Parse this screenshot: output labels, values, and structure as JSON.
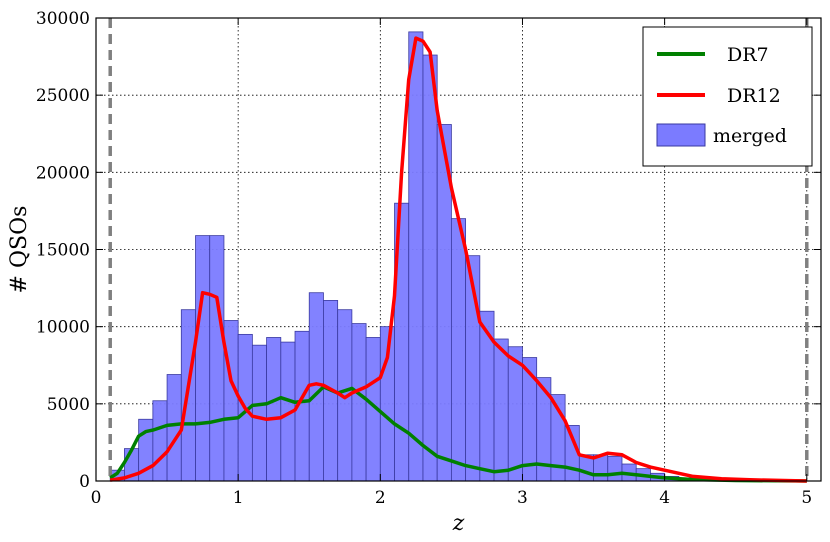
{
  "chart_data": {
    "type": "bar",
    "xlabel": "z",
    "ylabel": "# QSOs",
    "xlim": [
      0,
      5.1
    ],
    "ylim": [
      0,
      30000
    ],
    "xticks": [
      0,
      1,
      2,
      3,
      4,
      5
    ],
    "yticks": [
      0,
      5000,
      10000,
      15000,
      20000,
      25000,
      30000
    ],
    "grid": true,
    "legend_position": "top-right",
    "vertical_lines": [
      0.1,
      5.0
    ],
    "histogram": {
      "name": "merged",
      "color": "#7b7bff",
      "bin_width": 0.1,
      "bin_starts": [
        0.1,
        0.2,
        0.3,
        0.4,
        0.5,
        0.6,
        0.7,
        0.8,
        0.9,
        1.0,
        1.1,
        1.2,
        1.3,
        1.4,
        1.5,
        1.6,
        1.7,
        1.8,
        1.9,
        2.0,
        2.1,
        2.2,
        2.3,
        2.4,
        2.5,
        2.6,
        2.7,
        2.8,
        2.9,
        3.0,
        3.1,
        3.2,
        3.3,
        3.4,
        3.5,
        3.6,
        3.7,
        3.8,
        3.9,
        4.0,
        4.1,
        4.2,
        4.3,
        4.4,
        4.5,
        4.6,
        4.7,
        4.8,
        4.9
      ],
      "values": [
        700,
        2100,
        4000,
        5200,
        6900,
        11100,
        15900,
        15900,
        10400,
        9500,
        8800,
        9300,
        9000,
        9700,
        12200,
        11700,
        11100,
        10200,
        9300,
        10000,
        18000,
        29100,
        27600,
        23100,
        17000,
        14600,
        11000,
        9200,
        8700,
        8000,
        6700,
        5600,
        3600,
        1700,
        1700,
        1600,
        1100,
        800,
        500,
        300,
        200,
        150,
        100,
        80,
        60,
        40,
        30,
        20,
        10
      ]
    },
    "series": [
      {
        "name": "DR7",
        "color": "#008000",
        "x": [
          0.1,
          0.15,
          0.2,
          0.25,
          0.3,
          0.35,
          0.4,
          0.5,
          0.6,
          0.7,
          0.8,
          0.9,
          1.0,
          1.1,
          1.2,
          1.3,
          1.4,
          1.5,
          1.6,
          1.7,
          1.8,
          1.9,
          2.0,
          2.1,
          2.2,
          2.3,
          2.4,
          2.5,
          2.6,
          2.7,
          2.8,
          2.9,
          3.0,
          3.1,
          3.2,
          3.3,
          3.4,
          3.5,
          3.6,
          3.7,
          3.8,
          3.9,
          4.0,
          4.2,
          4.5,
          5.0
        ],
        "values": [
          200,
          500,
          1200,
          2000,
          2900,
          3200,
          3300,
          3600,
          3700,
          3700,
          3800,
          4000,
          4100,
          4900,
          5000,
          5400,
          5100,
          5200,
          6100,
          5700,
          6000,
          5300,
          4500,
          3700,
          3100,
          2300,
          1600,
          1300,
          1000,
          800,
          600,
          700,
          1000,
          1100,
          1000,
          900,
          700,
          400,
          400,
          500,
          400,
          300,
          200,
          100,
          30,
          0
        ]
      },
      {
        "name": "DR12",
        "color": "#ff0000",
        "x": [
          0.1,
          0.2,
          0.3,
          0.4,
          0.5,
          0.6,
          0.7,
          0.75,
          0.8,
          0.85,
          0.9,
          0.95,
          1.0,
          1.05,
          1.1,
          1.2,
          1.3,
          1.4,
          1.5,
          1.55,
          1.6,
          1.7,
          1.75,
          1.8,
          1.9,
          2.0,
          2.05,
          2.1,
          2.15,
          2.2,
          2.25,
          2.3,
          2.35,
          2.4,
          2.5,
          2.6,
          2.7,
          2.8,
          2.9,
          3.0,
          3.1,
          3.2,
          3.3,
          3.4,
          3.5,
          3.6,
          3.7,
          3.8,
          3.9,
          4.0,
          4.1,
          4.2,
          4.4,
          4.6,
          4.8,
          5.0
        ],
        "values": [
          50,
          200,
          500,
          1000,
          1900,
          3300,
          9000,
          12200,
          12100,
          11900,
          9000,
          6500,
          5500,
          4700,
          4200,
          4000,
          4100,
          4600,
          6200,
          6300,
          6200,
          5700,
          5400,
          5700,
          6100,
          6700,
          8000,
          12000,
          20000,
          26000,
          28700,
          28500,
          27800,
          24000,
          19000,
          15000,
          10300,
          9000,
          8100,
          7500,
          6500,
          5400,
          3900,
          1700,
          1500,
          1800,
          1700,
          1200,
          900,
          700,
          500,
          300,
          150,
          80,
          40,
          0
        ]
      }
    ]
  }
}
